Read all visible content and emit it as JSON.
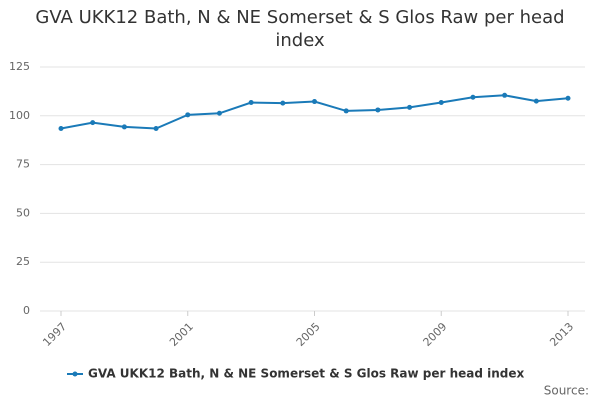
{
  "chart_data": {
    "type": "line",
    "title": "GVA UKK12 Bath, N & NE Somerset & S Glos Raw per head index",
    "x": [
      1997,
      1998,
      1999,
      2000,
      2001,
      2002,
      2003,
      2004,
      2005,
      2006,
      2007,
      2008,
      2009,
      2010,
      2011,
      2012,
      2013
    ],
    "series": [
      {
        "name": "GVA UKK12 Bath, N & NE Somerset & S Glos Raw per head index",
        "color": "#1a7ab8",
        "values": [
          93.5,
          96.5,
          94.3,
          93.5,
          100.5,
          101.3,
          106.8,
          106.5,
          107.3,
          102.5,
          103,
          104.3,
          106.8,
          109.5,
          110.5,
          107.5,
          109
        ]
      }
    ],
    "xlim": [
      1997,
      2013
    ],
    "xticks": [
      1997,
      2001,
      2005,
      2009,
      2013
    ],
    "ylim": [
      0,
      125
    ],
    "yticks": [
      0,
      25,
      50,
      75,
      100,
      125
    ],
    "grid": true,
    "legend": "bottom",
    "source": "Source:"
  }
}
